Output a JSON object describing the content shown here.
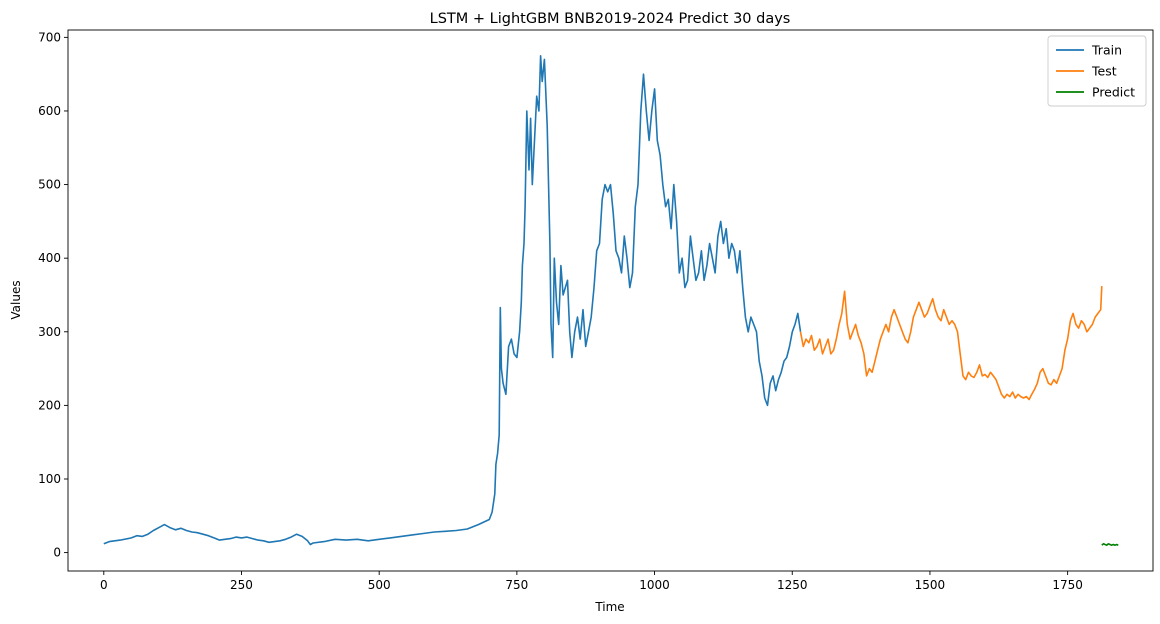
{
  "chart_data": {
    "type": "line",
    "title": "LSTM + LightGBM BNB2019-2024 Predict 30 days",
    "xlabel": "Time",
    "ylabel": "Values",
    "xlim": [
      -65,
      1905
    ],
    "ylim": [
      -25,
      710
    ],
    "xticks": [
      0,
      250,
      500,
      750,
      1000,
      1250,
      1500,
      1750
    ],
    "yticks": [
      0,
      100,
      200,
      300,
      400,
      500,
      600,
      700
    ],
    "grid": false,
    "legend_position": "top-right",
    "series": [
      {
        "name": "Train",
        "color": "#1f77b4",
        "points": [
          [
            0,
            12
          ],
          [
            10,
            15
          ],
          [
            30,
            17
          ],
          [
            50,
            20
          ],
          [
            60,
            23
          ],
          [
            70,
            22
          ],
          [
            80,
            25
          ],
          [
            90,
            30
          ],
          [
            100,
            34
          ],
          [
            110,
            38
          ],
          [
            120,
            34
          ],
          [
            130,
            31
          ],
          [
            140,
            33
          ],
          [
            150,
            30
          ],
          [
            160,
            28
          ],
          [
            170,
            27
          ],
          [
            180,
            25
          ],
          [
            190,
            23
          ],
          [
            200,
            20
          ],
          [
            210,
            17
          ],
          [
            220,
            18
          ],
          [
            230,
            19
          ],
          [
            240,
            21
          ],
          [
            250,
            20
          ],
          [
            260,
            21
          ],
          [
            270,
            19
          ],
          [
            280,
            17
          ],
          [
            290,
            16
          ],
          [
            300,
            14
          ],
          [
            310,
            15
          ],
          [
            320,
            16
          ],
          [
            330,
            18
          ],
          [
            340,
            21
          ],
          [
            350,
            25
          ],
          [
            360,
            22
          ],
          [
            370,
            16
          ],
          [
            375,
            11
          ],
          [
            380,
            13
          ],
          [
            400,
            15
          ],
          [
            420,
            18
          ],
          [
            440,
            17
          ],
          [
            460,
            18
          ],
          [
            480,
            16
          ],
          [
            500,
            18
          ],
          [
            520,
            20
          ],
          [
            540,
            22
          ],
          [
            560,
            24
          ],
          [
            580,
            26
          ],
          [
            600,
            28
          ],
          [
            620,
            29
          ],
          [
            640,
            30
          ],
          [
            660,
            32
          ],
          [
            680,
            38
          ],
          [
            700,
            45
          ],
          [
            705,
            55
          ],
          [
            710,
            80
          ],
          [
            712,
            120
          ],
          [
            715,
            135
          ],
          [
            718,
            160
          ],
          [
            720,
            333
          ],
          [
            722,
            250
          ],
          [
            725,
            230
          ],
          [
            730,
            215
          ],
          [
            735,
            280
          ],
          [
            740,
            290
          ],
          [
            745,
            270
          ],
          [
            750,
            265
          ],
          [
            755,
            300
          ],
          [
            758,
            340
          ],
          [
            760,
            390
          ],
          [
            763,
            420
          ],
          [
            765,
            470
          ],
          [
            768,
            600
          ],
          [
            772,
            520
          ],
          [
            775,
            590
          ],
          [
            778,
            500
          ],
          [
            782,
            560
          ],
          [
            786,
            620
          ],
          [
            790,
            600
          ],
          [
            793,
            675
          ],
          [
            796,
            640
          ],
          [
            800,
            670
          ],
          [
            805,
            580
          ],
          [
            810,
            420
          ],
          [
            812,
            310
          ],
          [
            815,
            265
          ],
          [
            818,
            400
          ],
          [
            822,
            340
          ],
          [
            826,
            310
          ],
          [
            830,
            390
          ],
          [
            834,
            350
          ],
          [
            838,
            360
          ],
          [
            842,
            370
          ],
          [
            846,
            300
          ],
          [
            850,
            265
          ],
          [
            855,
            300
          ],
          [
            860,
            320
          ],
          [
            865,
            290
          ],
          [
            870,
            330
          ],
          [
            875,
            280
          ],
          [
            880,
            300
          ],
          [
            885,
            320
          ],
          [
            890,
            360
          ],
          [
            895,
            410
          ],
          [
            900,
            420
          ],
          [
            905,
            480
          ],
          [
            910,
            500
          ],
          [
            915,
            490
          ],
          [
            920,
            500
          ],
          [
            925,
            460
          ],
          [
            930,
            410
          ],
          [
            935,
            400
          ],
          [
            940,
            380
          ],
          [
            945,
            430
          ],
          [
            950,
            400
          ],
          [
            955,
            360
          ],
          [
            960,
            380
          ],
          [
            965,
            470
          ],
          [
            970,
            500
          ],
          [
            975,
            600
          ],
          [
            980,
            650
          ],
          [
            985,
            600
          ],
          [
            990,
            560
          ],
          [
            995,
            600
          ],
          [
            1000,
            630
          ],
          [
            1005,
            560
          ],
          [
            1010,
            540
          ],
          [
            1015,
            500
          ],
          [
            1020,
            470
          ],
          [
            1025,
            480
          ],
          [
            1030,
            440
          ],
          [
            1035,
            500
          ],
          [
            1040,
            450
          ],
          [
            1045,
            380
          ],
          [
            1050,
            400
          ],
          [
            1055,
            360
          ],
          [
            1060,
            370
          ],
          [
            1065,
            430
          ],
          [
            1070,
            400
          ],
          [
            1075,
            370
          ],
          [
            1080,
            380
          ],
          [
            1085,
            410
          ],
          [
            1090,
            370
          ],
          [
            1095,
            390
          ],
          [
            1100,
            420
          ],
          [
            1105,
            400
          ],
          [
            1110,
            380
          ],
          [
            1115,
            430
          ],
          [
            1120,
            450
          ],
          [
            1125,
            420
          ],
          [
            1130,
            440
          ],
          [
            1135,
            400
          ],
          [
            1140,
            420
          ],
          [
            1145,
            410
          ],
          [
            1150,
            380
          ],
          [
            1155,
            410
          ],
          [
            1160,
            360
          ],
          [
            1165,
            320
          ],
          [
            1170,
            300
          ],
          [
            1175,
            320
          ],
          [
            1180,
            310
          ],
          [
            1185,
            300
          ],
          [
            1190,
            260
          ],
          [
            1195,
            240
          ],
          [
            1200,
            210
          ],
          [
            1205,
            200
          ],
          [
            1210,
            230
          ],
          [
            1215,
            240
          ],
          [
            1220,
            220
          ],
          [
            1225,
            235
          ],
          [
            1230,
            245
          ],
          [
            1235,
            260
          ],
          [
            1240,
            265
          ],
          [
            1245,
            280
          ],
          [
            1250,
            300
          ],
          [
            1255,
            310
          ],
          [
            1260,
            325
          ],
          [
            1265,
            300
          ]
        ]
      },
      {
        "name": "Test",
        "color": "#ff7f0e",
        "points": [
          [
            1265,
            300
          ],
          [
            1270,
            280
          ],
          [
            1275,
            290
          ],
          [
            1280,
            285
          ],
          [
            1285,
            295
          ],
          [
            1290,
            275
          ],
          [
            1295,
            280
          ],
          [
            1300,
            290
          ],
          [
            1305,
            270
          ],
          [
            1310,
            280
          ],
          [
            1315,
            290
          ],
          [
            1320,
            270
          ],
          [
            1325,
            275
          ],
          [
            1330,
            290
          ],
          [
            1335,
            310
          ],
          [
            1340,
            325
          ],
          [
            1345,
            355
          ],
          [
            1350,
            310
          ],
          [
            1355,
            290
          ],
          [
            1360,
            300
          ],
          [
            1365,
            310
          ],
          [
            1370,
            295
          ],
          [
            1375,
            285
          ],
          [
            1380,
            270
          ],
          [
            1385,
            240
          ],
          [
            1390,
            250
          ],
          [
            1395,
            245
          ],
          [
            1400,
            260
          ],
          [
            1405,
            275
          ],
          [
            1410,
            290
          ],
          [
            1415,
            300
          ],
          [
            1420,
            310
          ],
          [
            1425,
            300
          ],
          [
            1430,
            320
          ],
          [
            1435,
            330
          ],
          [
            1440,
            320
          ],
          [
            1445,
            310
          ],
          [
            1450,
            300
          ],
          [
            1455,
            290
          ],
          [
            1460,
            285
          ],
          [
            1465,
            300
          ],
          [
            1470,
            320
          ],
          [
            1475,
            330
          ],
          [
            1480,
            340
          ],
          [
            1485,
            330
          ],
          [
            1490,
            320
          ],
          [
            1495,
            325
          ],
          [
            1500,
            335
          ],
          [
            1505,
            345
          ],
          [
            1510,
            330
          ],
          [
            1515,
            320
          ],
          [
            1520,
            315
          ],
          [
            1525,
            330
          ],
          [
            1530,
            320
          ],
          [
            1535,
            310
          ],
          [
            1540,
            315
          ],
          [
            1545,
            310
          ],
          [
            1550,
            300
          ],
          [
            1555,
            270
          ],
          [
            1560,
            240
          ],
          [
            1565,
            235
          ],
          [
            1570,
            245
          ],
          [
            1575,
            240
          ],
          [
            1580,
            238
          ],
          [
            1585,
            245
          ],
          [
            1590,
            255
          ],
          [
            1595,
            240
          ],
          [
            1600,
            242
          ],
          [
            1605,
            238
          ],
          [
            1610,
            245
          ],
          [
            1615,
            240
          ],
          [
            1620,
            235
          ],
          [
            1625,
            225
          ],
          [
            1630,
            215
          ],
          [
            1635,
            210
          ],
          [
            1640,
            215
          ],
          [
            1645,
            212
          ],
          [
            1650,
            218
          ],
          [
            1655,
            210
          ],
          [
            1660,
            215
          ],
          [
            1665,
            212
          ],
          [
            1670,
            210
          ],
          [
            1675,
            212
          ],
          [
            1680,
            208
          ],
          [
            1685,
            215
          ],
          [
            1690,
            222
          ],
          [
            1695,
            230
          ],
          [
            1700,
            245
          ],
          [
            1705,
            250
          ],
          [
            1710,
            240
          ],
          [
            1715,
            230
          ],
          [
            1720,
            228
          ],
          [
            1725,
            235
          ],
          [
            1730,
            230
          ],
          [
            1735,
            240
          ],
          [
            1740,
            250
          ],
          [
            1745,
            275
          ],
          [
            1750,
            290
          ],
          [
            1755,
            315
          ],
          [
            1760,
            325
          ],
          [
            1765,
            310
          ],
          [
            1770,
            305
          ],
          [
            1775,
            315
          ],
          [
            1780,
            310
          ],
          [
            1785,
            300
          ],
          [
            1790,
            305
          ],
          [
            1795,
            310
          ],
          [
            1800,
            320
          ],
          [
            1805,
            325
          ],
          [
            1810,
            330
          ],
          [
            1812,
            362
          ]
        ]
      },
      {
        "name": "Predict",
        "color": "#008000",
        "points": [
          [
            1812,
            10
          ],
          [
            1815,
            12
          ],
          [
            1818,
            11
          ],
          [
            1821,
            10
          ],
          [
            1824,
            12
          ],
          [
            1827,
            11
          ],
          [
            1830,
            10
          ],
          [
            1833,
            11
          ],
          [
            1836,
            10
          ],
          [
            1839,
            11
          ],
          [
            1842,
            10
          ]
        ]
      }
    ]
  }
}
